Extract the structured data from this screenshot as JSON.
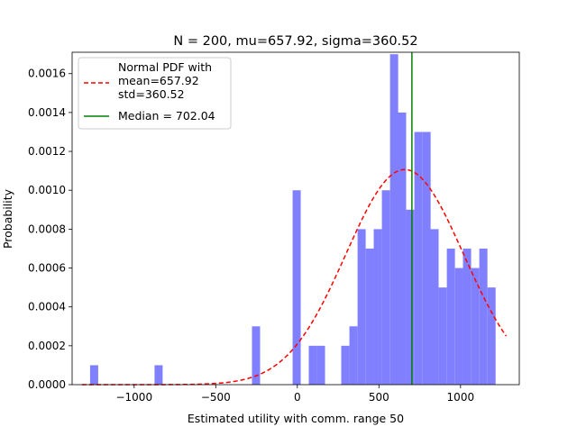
{
  "chart_data": {
    "type": "bar",
    "title": "N = 200, mu=657.92, sigma=360.52",
    "xlabel": "Estimated utility with comm. range 50",
    "ylabel": "Probability",
    "xlim": [
      -1380,
      1360
    ],
    "ylim": [
      0,
      0.00171
    ],
    "x_ticks": [
      {
        "value": -1000,
        "label": "−1000"
      },
      {
        "value": -500,
        "label": "−500"
      },
      {
        "value": 0,
        "label": "0"
      },
      {
        "value": 500,
        "label": "500"
      },
      {
        "value": 1000,
        "label": "1000"
      }
    ],
    "y_ticks": [
      {
        "value": 0,
        "label": "0.0000"
      },
      {
        "value": 0.0002,
        "label": "0.0002"
      },
      {
        "value": 0.0004,
        "label": "0.0004"
      },
      {
        "value": 0.0006,
        "label": "0.0006"
      },
      {
        "value": 0.0008,
        "label": "0.0008"
      },
      {
        "value": 0.001,
        "label": "0.0010"
      },
      {
        "value": 0.0012,
        "label": "0.0012"
      },
      {
        "value": 0.0014,
        "label": "0.0014"
      },
      {
        "value": 0.0016,
        "label": "0.0016"
      }
    ],
    "histogram": {
      "color": "#8080ff",
      "bin_width": 49.7,
      "bins": [
        {
          "x0": -1270,
          "value": 0.0001
        },
        {
          "x0": -875,
          "value": 0.0001
        },
        {
          "x0": -278,
          "value": 0.0003
        },
        {
          "x0": -29,
          "value": 0.001
        },
        {
          "x0": 70,
          "value": 0.0002
        },
        {
          "x0": 120,
          "value": 0.0002
        },
        {
          "x0": 269,
          "value": 0.0002
        },
        {
          "x0": 319,
          "value": 0.0003
        },
        {
          "x0": 369,
          "value": 0.0008
        },
        {
          "x0": 419,
          "value": 0.0007
        },
        {
          "x0": 468,
          "value": 0.0008
        },
        {
          "x0": 518,
          "value": 0.001
        },
        {
          "x0": 568,
          "value": 0.0017
        },
        {
          "x0": 617,
          "value": 0.0014
        },
        {
          "x0": 667,
          "value": 0.0009
        },
        {
          "x0": 717,
          "value": 0.0013
        },
        {
          "x0": 767,
          "value": 0.0013
        },
        {
          "x0": 816,
          "value": 0.0008
        },
        {
          "x0": 866,
          "value": 0.0005
        },
        {
          "x0": 916,
          "value": 0.0007
        },
        {
          "x0": 966,
          "value": 0.0006
        },
        {
          "x0": 1015,
          "value": 0.0007
        },
        {
          "x0": 1065,
          "value": 0.0006
        },
        {
          "x0": 1115,
          "value": 0.0007
        },
        {
          "x0": 1165,
          "value": 0.0005
        }
      ]
    },
    "normal_pdf": {
      "label": "Normal PDF with\nmean=657.92\nstd=360.52",
      "mean": 657.92,
      "std": 360.52,
      "x_range": [
        -1320,
        1280
      ],
      "color": "#ff0000",
      "style": "dashed"
    },
    "median": {
      "label": "Median = 702.04",
      "value": 702.04,
      "color": "#008000"
    },
    "legend_position": "top-left",
    "grid": false
  }
}
